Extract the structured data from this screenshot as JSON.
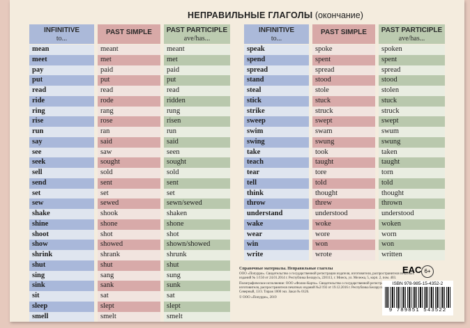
{
  "title": {
    "main": "НЕПРАВИЛЬНЫЕ ГЛАГОЛЫ",
    "note": "(окончание)"
  },
  "headers": {
    "infinitive": "INFINITIVE",
    "infinitive_sub": "to...",
    "past_simple": "PAST SIMPLE",
    "past_participle": "PAST PARTICIPLE",
    "past_participle_sub": "ave/has..."
  },
  "colors": {
    "blue": "#a9b8da",
    "pink": "#d8aaa9",
    "green": "#b9c8ad",
    "card": "#f4ecde"
  },
  "left_table": [
    [
      "mean",
      "meant",
      "meant"
    ],
    [
      "meet",
      "met",
      "met"
    ],
    [
      "pay",
      "paid",
      "paid"
    ],
    [
      "put",
      "put",
      "put"
    ],
    [
      "read",
      "read",
      "read"
    ],
    [
      "ride",
      "rode",
      "ridden"
    ],
    [
      "ring",
      "rang",
      "rung"
    ],
    [
      "rise",
      "rose",
      "risen"
    ],
    [
      "run",
      "ran",
      "run"
    ],
    [
      "say",
      "said",
      "said"
    ],
    [
      "see",
      "saw",
      "seen"
    ],
    [
      "seek",
      "sought",
      "sought"
    ],
    [
      "sell",
      "sold",
      "sold"
    ],
    [
      "send",
      "sent",
      "sent"
    ],
    [
      "set",
      "set",
      "set"
    ],
    [
      "sew",
      "sewed",
      "sewn/sewed"
    ],
    [
      "shake",
      "shook",
      "shaken"
    ],
    [
      "shine",
      "shone",
      "shone"
    ],
    [
      "shoot",
      "shot",
      "shot"
    ],
    [
      "show",
      "showed",
      "shown/showed"
    ],
    [
      "shrink",
      "shrank",
      "shrunk"
    ],
    [
      "shut",
      "shut",
      "shut"
    ],
    [
      "sing",
      "sang",
      "sung"
    ],
    [
      "sink",
      "sank",
      "sunk"
    ],
    [
      "sit",
      "sat",
      "sat"
    ],
    [
      "sleep",
      "slept",
      "slept"
    ],
    [
      "smell",
      "smelt",
      "smelt"
    ]
  ],
  "right_table": [
    [
      "speak",
      "spoke",
      "spoken"
    ],
    [
      "spend",
      "spent",
      "spent"
    ],
    [
      "spread",
      "spread",
      "spread"
    ],
    [
      "stand",
      "stood",
      "stood"
    ],
    [
      "steal",
      "stole",
      "stolen"
    ],
    [
      "stick",
      "stuck",
      "stuck"
    ],
    [
      "strike",
      "struck",
      "struck"
    ],
    [
      "sweep",
      "swept",
      "swept"
    ],
    [
      "swim",
      "swam",
      "swum"
    ],
    [
      "swing",
      "swung",
      "swung"
    ],
    [
      "take",
      "took",
      "taken"
    ],
    [
      "teach",
      "taught",
      "taught"
    ],
    [
      "tear",
      "tore",
      "torn"
    ],
    [
      "tell",
      "told",
      "told"
    ],
    [
      "think",
      "thought",
      "thought"
    ],
    [
      "throw",
      "threw",
      "thrown"
    ],
    [
      "understand",
      "understood",
      "understood"
    ],
    [
      "wake",
      "woke",
      "woken"
    ],
    [
      "wear",
      "wore",
      "worn"
    ],
    [
      "win",
      "won",
      "won"
    ],
    [
      "write",
      "wrote",
      "written"
    ]
  ],
  "publisher": {
    "heading": "Справочные материалы. Неправильные глаголы",
    "p1": "ООО «Попурри». Свидетельство о государственной регистрации издателя, изготовителя, распространителя печатных изданий № 1/150 от 24.01.2014 г. Республика Беларусь, 220113, г. Минск, ул. Мележа, 5, корп. 2, пом. 403.",
    "p2": "Полиграфическое исполнение: ООО «Фолио-Карта». Свидетельство о государственной регистрации издателя, изготовителя, распространителя печатных изданий №2/192 от 19.12.2016 г. Республика Беларусь, 220036, г. Минск, пер. Северный, 13/3. Тираж 1000 экз. Заказ № 0126.",
    "copyright": "© ООО «Попурри», 2019",
    "eac": "EAC",
    "age": "6+",
    "isbn": "ISBN  978-985-15-4352-2",
    "barcode": "9 789851 543522"
  }
}
